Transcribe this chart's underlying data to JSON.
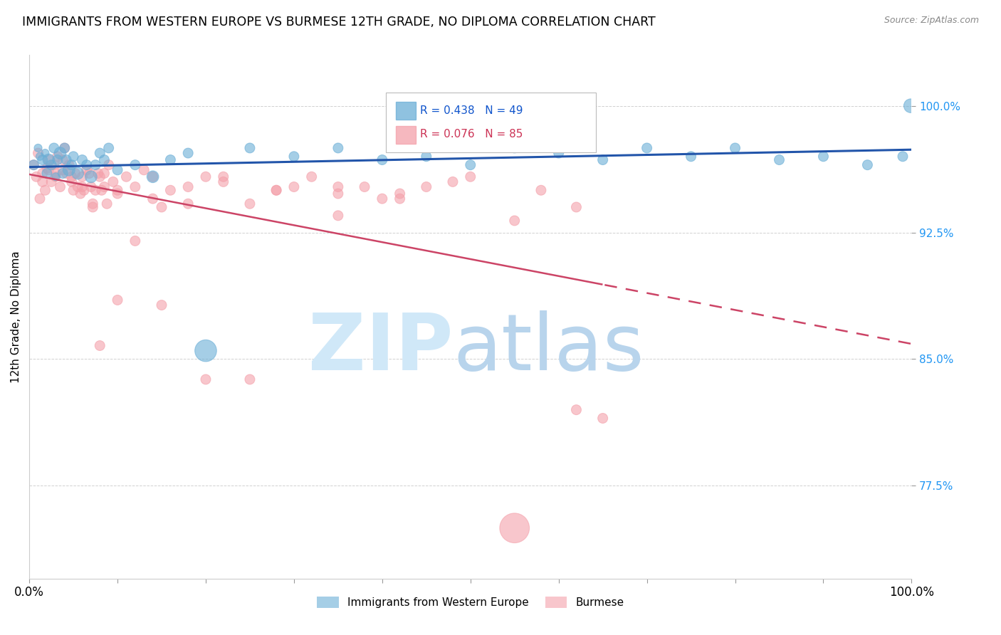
{
  "title": "IMMIGRANTS FROM WESTERN EUROPE VS BURMESE 12TH GRADE, NO DIPLOMA CORRELATION CHART",
  "source": "Source: ZipAtlas.com",
  "ylabel": "12th Grade, No Diploma",
  "xlim": [
    0.0,
    1.0
  ],
  "ylim": [
    0.72,
    1.03
  ],
  "yticks": [
    0.775,
    0.85,
    0.925,
    1.0
  ],
  "ytick_labels": [
    "77.5%",
    "85.0%",
    "92.5%",
    "100.0%"
  ],
  "legend1_label": "Immigrants from Western Europe",
  "legend2_label": "Burmese",
  "R1": 0.438,
  "N1": 49,
  "R2": 0.076,
  "N2": 85,
  "blue_color": "#6aaed6",
  "pink_color": "#f4a0aa",
  "trend1_color": "#2255aa",
  "trend2_color": "#cc4466",
  "blue_points_x": [
    0.005,
    0.01,
    0.012,
    0.015,
    0.018,
    0.02,
    0.022,
    0.025,
    0.028,
    0.03,
    0.032,
    0.035,
    0.038,
    0.04,
    0.042,
    0.045,
    0.048,
    0.05,
    0.055,
    0.06,
    0.065,
    0.07,
    0.075,
    0.08,
    0.085,
    0.09,
    0.1,
    0.12,
    0.14,
    0.16,
    0.18,
    0.2,
    0.25,
    0.3,
    0.35,
    0.4,
    0.45,
    0.5,
    0.55,
    0.6,
    0.65,
    0.7,
    0.75,
    0.8,
    0.85,
    0.9,
    0.95,
    0.99,
    0.999
  ],
  "blue_points_y": [
    0.965,
    0.975,
    0.97,
    0.968,
    0.972,
    0.96,
    0.968,
    0.965,
    0.975,
    0.958,
    0.968,
    0.972,
    0.96,
    0.975,
    0.968,
    0.962,
    0.965,
    0.97,
    0.96,
    0.968,
    0.965,
    0.958,
    0.965,
    0.972,
    0.968,
    0.975,
    0.962,
    0.965,
    0.958,
    0.968,
    0.972,
    0.855,
    0.975,
    0.97,
    0.975,
    0.968,
    0.97,
    0.965,
    0.975,
    0.972,
    0.968,
    0.975,
    0.97,
    0.975,
    0.968,
    0.97,
    0.965,
    0.97,
    1.0
  ],
  "blue_sizes": [
    10,
    8,
    8,
    10,
    8,
    10,
    12,
    10,
    10,
    8,
    10,
    12,
    10,
    10,
    10,
    12,
    10,
    10,
    12,
    10,
    10,
    12,
    10,
    10,
    10,
    10,
    10,
    10,
    12,
    10,
    10,
    22,
    10,
    10,
    10,
    10,
    10,
    10,
    10,
    10,
    10,
    10,
    10,
    10,
    10,
    10,
    10,
    10,
    14
  ],
  "pink_points_x": [
    0.005,
    0.008,
    0.01,
    0.012,
    0.015,
    0.018,
    0.02,
    0.022,
    0.025,
    0.028,
    0.03,
    0.032,
    0.035,
    0.038,
    0.04,
    0.042,
    0.045,
    0.048,
    0.05,
    0.052,
    0.055,
    0.058,
    0.06,
    0.062,
    0.065,
    0.068,
    0.07,
    0.072,
    0.075,
    0.078,
    0.08,
    0.082,
    0.085,
    0.088,
    0.09,
    0.095,
    0.1,
    0.11,
    0.12,
    0.13,
    0.14,
    0.15,
    0.16,
    0.18,
    0.2,
    0.22,
    0.25,
    0.28,
    0.3,
    0.32,
    0.35,
    0.38,
    0.4,
    0.42,
    0.45,
    0.48,
    0.5,
    0.35,
    0.58,
    0.62,
    0.015,
    0.022,
    0.03,
    0.038,
    0.048,
    0.06,
    0.072,
    0.085,
    0.1,
    0.14,
    0.18,
    0.22,
    0.28,
    0.35,
    0.42,
    0.55,
    0.62,
    0.2,
    0.1,
    0.15,
    0.08,
    0.12,
    0.25,
    0.65,
    0.55
  ],
  "pink_points_y": [
    0.965,
    0.958,
    0.972,
    0.945,
    0.96,
    0.95,
    0.963,
    0.968,
    0.955,
    0.965,
    0.96,
    0.97,
    0.952,
    0.962,
    0.975,
    0.96,
    0.965,
    0.955,
    0.95,
    0.96,
    0.952,
    0.948,
    0.958,
    0.95,
    0.962,
    0.96,
    0.952,
    0.942,
    0.95,
    0.96,
    0.958,
    0.95,
    0.952,
    0.942,
    0.965,
    0.955,
    0.95,
    0.958,
    0.952,
    0.962,
    0.945,
    0.94,
    0.95,
    0.952,
    0.958,
    0.955,
    0.942,
    0.95,
    0.952,
    0.958,
    0.948,
    0.952,
    0.945,
    0.945,
    0.952,
    0.955,
    0.958,
    0.935,
    0.95,
    0.94,
    0.955,
    0.962,
    0.958,
    0.968,
    0.958,
    0.952,
    0.94,
    0.96,
    0.948,
    0.958,
    0.942,
    0.958,
    0.95,
    0.952,
    0.948,
    0.932,
    0.82,
    0.838,
    0.885,
    0.882,
    0.858,
    0.92,
    0.838,
    0.815,
    0.75
  ],
  "pink_sizes": [
    10,
    10,
    10,
    10,
    10,
    10,
    10,
    10,
    10,
    10,
    10,
    10,
    10,
    10,
    10,
    10,
    10,
    10,
    10,
    10,
    10,
    10,
    10,
    10,
    10,
    10,
    10,
    10,
    10,
    10,
    10,
    10,
    10,
    10,
    10,
    10,
    10,
    10,
    10,
    10,
    10,
    10,
    10,
    10,
    10,
    10,
    10,
    10,
    10,
    10,
    10,
    10,
    10,
    10,
    10,
    10,
    10,
    10,
    10,
    10,
    10,
    10,
    10,
    10,
    10,
    10,
    10,
    10,
    10,
    10,
    10,
    10,
    10,
    10,
    10,
    10,
    10,
    10,
    10,
    10,
    10,
    10,
    10,
    10,
    30
  ]
}
